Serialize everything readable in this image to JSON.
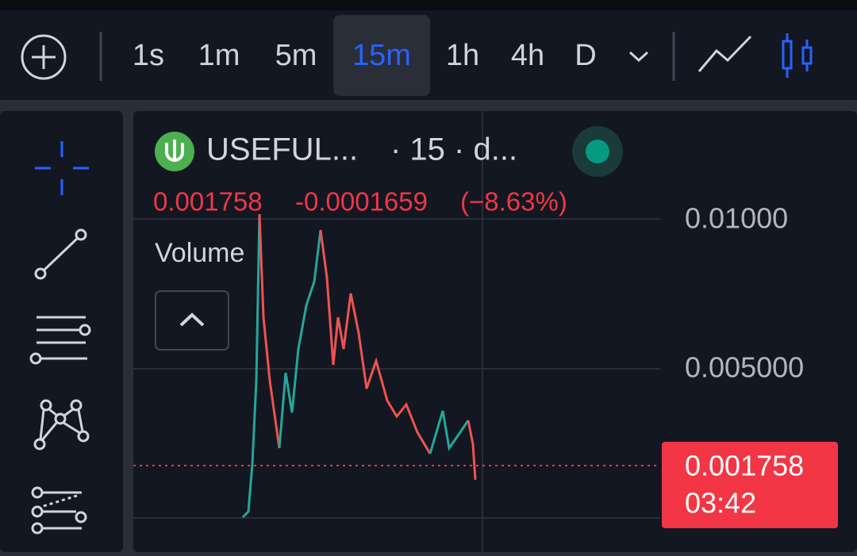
{
  "toolbar": {
    "intervals": [
      "1s",
      "1m",
      "5m",
      "15m",
      "1h",
      "4h",
      "D"
    ],
    "active_index": 3
  },
  "legend": {
    "symbol": "USEFUL...",
    "interval": "· 15 · d...",
    "price": "0.001758",
    "change": "-0.0001659",
    "change_percent": "(−8.63%)",
    "volume_label": "Volume"
  },
  "price_axis": {
    "labels": [
      "0.01000",
      "0.005000"
    ]
  },
  "last_price": {
    "price": "0.001758",
    "countdown": "03:42"
  }
}
